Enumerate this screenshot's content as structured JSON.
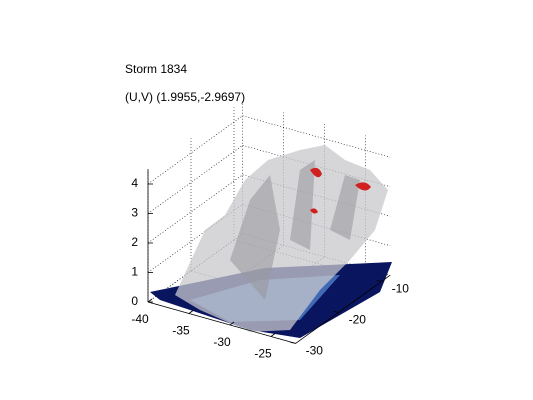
{
  "chart_data": {
    "type": "surface3d",
    "title": "Storm 1834",
    "subtitle": "(U,V) (1.9955,-2.9697)",
    "xlim": [
      -40,
      -22
    ],
    "xticks": [
      -40,
      -35,
      -30,
      -25
    ],
    "ylim": [
      -30,
      -8
    ],
    "yticks": [
      -30,
      -20,
      -10
    ],
    "zlim": [
      0,
      4.5
    ],
    "zticks": [
      0,
      1,
      2,
      3,
      4
    ],
    "grid": true
  }
}
